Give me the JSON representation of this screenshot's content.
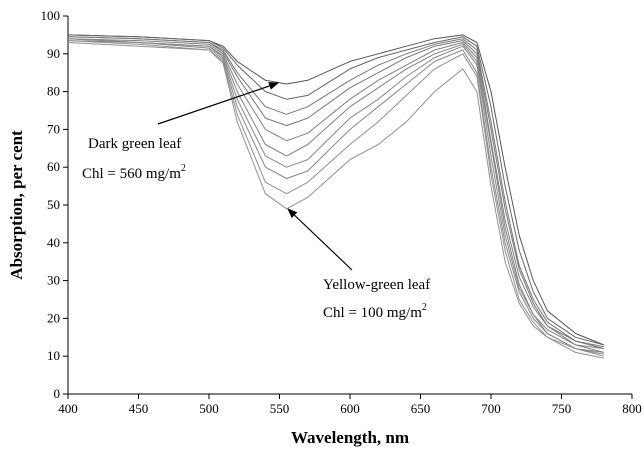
{
  "chart_data": {
    "type": "line",
    "x_label": "Wavelength, nm",
    "y_label": "Absorption, per cent",
    "xlim": [
      400,
      800
    ],
    "ylim": [
      0,
      100
    ],
    "xticks": [
      400,
      450,
      500,
      550,
      600,
      650,
      700,
      750,
      800
    ],
    "yticks": [
      0,
      10,
      20,
      30,
      40,
      50,
      60,
      70,
      80,
      90,
      100
    ],
    "annotations": [
      {
        "lines": [
          "Dark green leaf",
          "Chl = 560 mg/m"
        ],
        "sup": "2"
      },
      {
        "lines": [
          "Yellow-green leaf",
          "Chl = 100 mg/m"
        ],
        "sup": "2"
      }
    ],
    "x": [
      400,
      450,
      500,
      510,
      520,
      540,
      555,
      570,
      600,
      620,
      640,
      660,
      680,
      690,
      700,
      710,
      720,
      730,
      740,
      760,
      780
    ],
    "series": [
      {
        "color": "#555555",
        "values": [
          95,
          94.5,
          93.5,
          92,
          88,
          83,
          82,
          83,
          88,
          90,
          92,
          94,
          95,
          93,
          80,
          60,
          42,
          30,
          22,
          16,
          13
        ]
      },
      {
        "color": "#666666",
        "values": [
          95,
          94.5,
          93.5,
          91.5,
          87,
          80,
          78,
          79,
          86,
          89,
          91,
          93,
          94.5,
          92,
          76,
          55,
          38,
          27,
          20,
          15,
          13
        ]
      },
      {
        "color": "#777777",
        "values": [
          94.5,
          94,
          93,
          91,
          85,
          76,
          74,
          76,
          83,
          87,
          90,
          92.5,
          94,
          91,
          72,
          51,
          34,
          25,
          19,
          14,
          12.5
        ]
      },
      {
        "color": "#777777",
        "values": [
          94.5,
          94,
          93,
          90.5,
          84,
          73,
          71,
          73,
          81,
          85,
          89,
          92,
          93.5,
          90,
          70,
          49,
          33,
          24,
          18,
          14,
          12
        ]
      },
      {
        "color": "#808080",
        "values": [
          94,
          93.5,
          92.5,
          90,
          82,
          70,
          67,
          69,
          78,
          83,
          87,
          91,
          93,
          89,
          67,
          46,
          31,
          23,
          18,
          13,
          12
        ]
      },
      {
        "color": "#808080",
        "values": [
          94,
          93,
          92,
          89.5,
          80,
          66,
          63,
          66,
          76,
          81,
          86,
          90,
          92.5,
          88,
          66,
          44,
          29,
          21,
          17,
          13,
          11
        ]
      },
      {
        "color": "#888888",
        "values": [
          93.5,
          93,
          92,
          89,
          78,
          63,
          60,
          62,
          73,
          78,
          84,
          89,
          92,
          87,
          63,
          42,
          28,
          21,
          16,
          12,
          11
        ]
      },
      {
        "color": "#888888",
        "values": [
          94,
          93,
          91.5,
          88.5,
          76,
          60,
          57,
          59,
          70,
          76,
          82,
          88,
          91,
          85,
          60,
          40,
          27,
          20,
          16,
          12,
          10.5
        ]
      },
      {
        "color": "#909090",
        "values": [
          93.5,
          92.5,
          91,
          88,
          74,
          56,
          53,
          56,
          66,
          72,
          79,
          86,
          90,
          84,
          58,
          38,
          25,
          19,
          15,
          12,
          10
        ]
      },
      {
        "color": "#909090",
        "values": [
          93,
          92,
          91,
          87.5,
          72,
          53,
          49,
          52,
          62,
          66,
          72,
          80,
          86,
          80,
          55,
          35,
          24,
          18,
          15,
          11,
          9.5
        ]
      }
    ]
  }
}
